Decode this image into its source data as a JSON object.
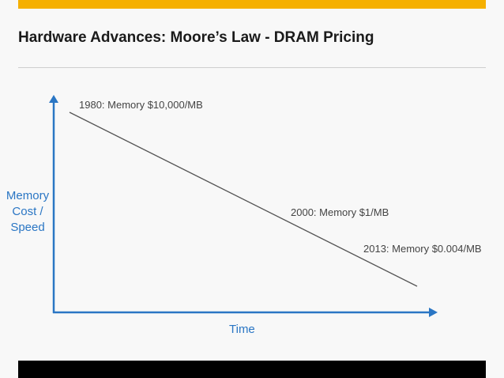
{
  "header": {
    "title": "Hardware Advances: Moore’s Law - DRAM Pricing"
  },
  "colors": {
    "accent_bar": "#f5b000",
    "axis": "#2a76c4",
    "trend_line": "#555555"
  },
  "chart_data": {
    "type": "line",
    "title": "",
    "xlabel": "Time",
    "ylabel": "Memory Cost / Speed",
    "ylabel_lines": [
      "Memory",
      "Cost /",
      "Speed"
    ],
    "x": [
      1980,
      2000,
      2013
    ],
    "values": [
      10000,
      1,
      0.004
    ],
    "yscale": "log",
    "grid": false,
    "annotations": [
      "1980: Memory $10,000/MB",
      "2000: Memory $1/MB",
      "2013: Memory $0.004/MB"
    ]
  }
}
